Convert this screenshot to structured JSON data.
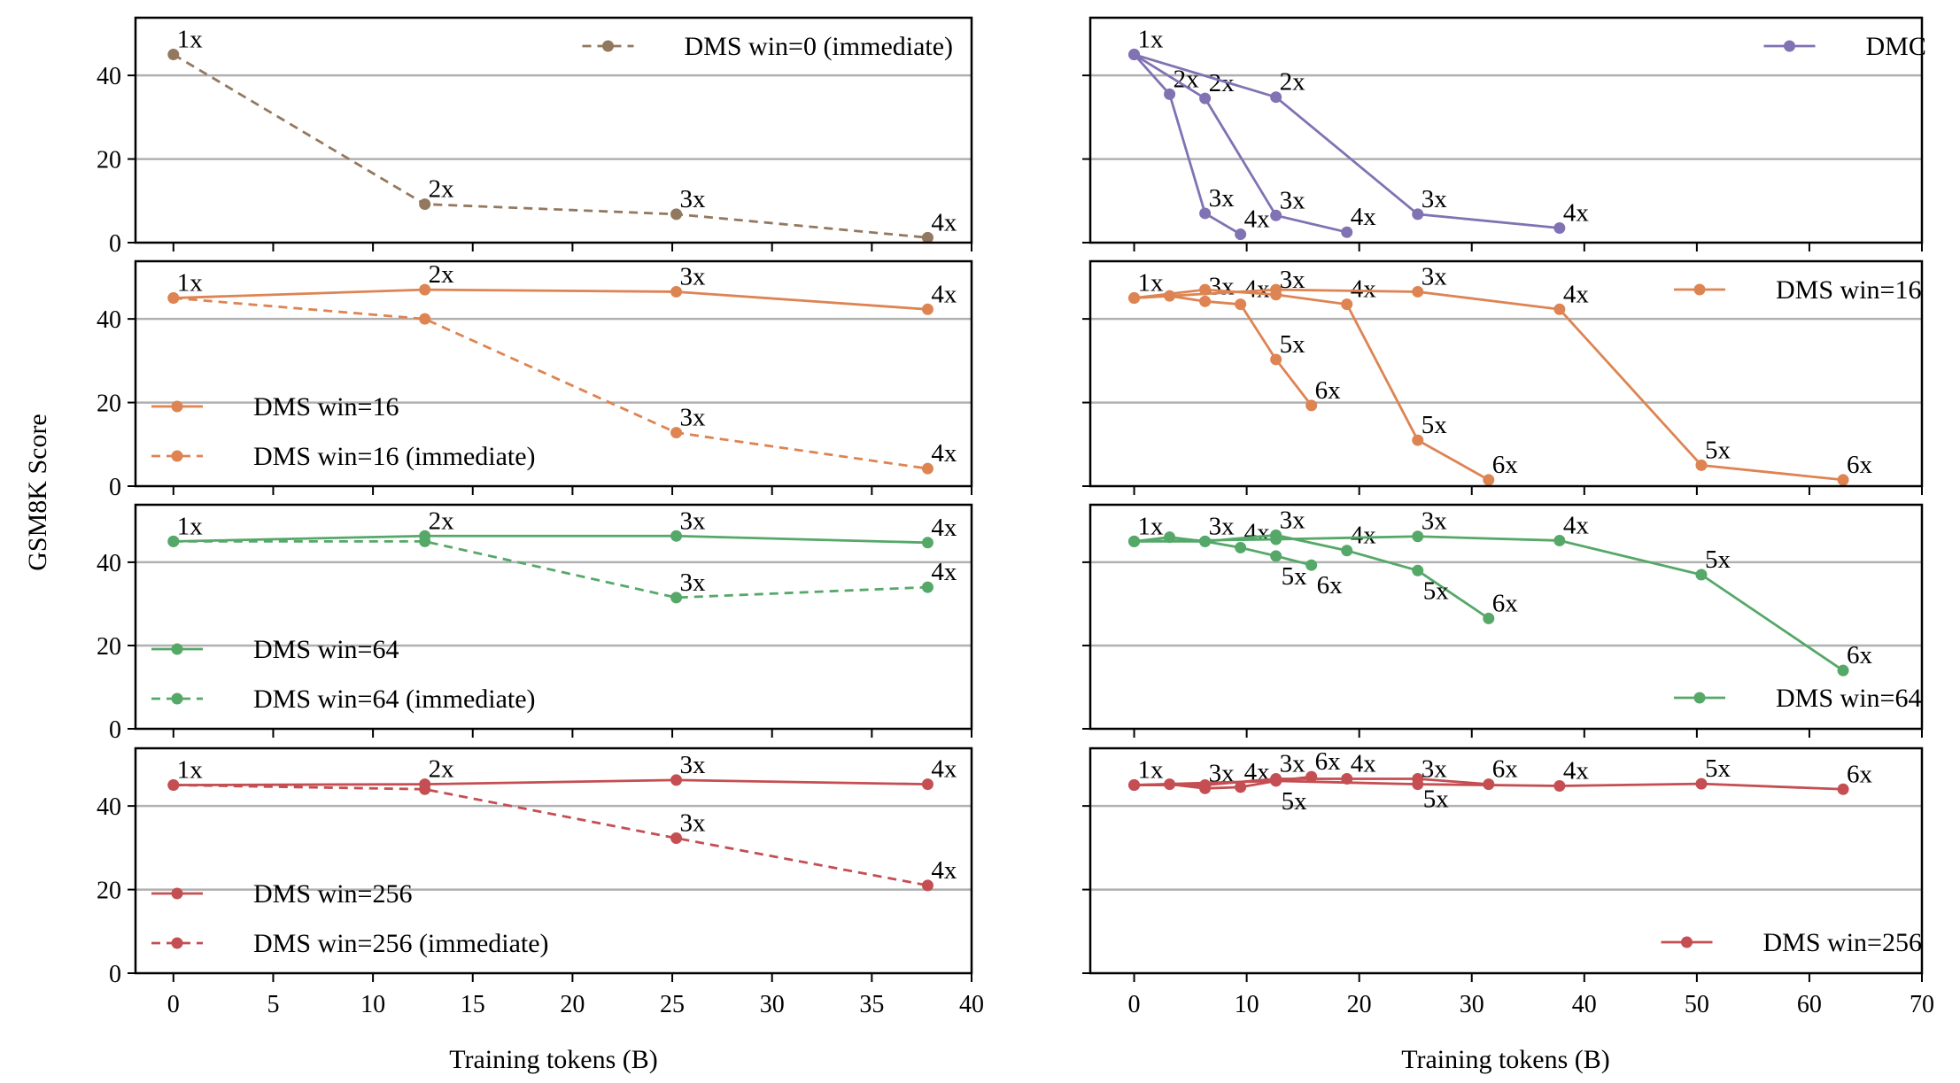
{
  "figure": {
    "ylabel": "GSM8K Score",
    "xlabel_left": "Training tokens (B)",
    "xlabel_right": "Training tokens (B)",
    "grid_color": "#b0b0b0"
  },
  "chart_data": [
    {
      "type": "line",
      "column": "left",
      "row": 0,
      "xlim": [
        -1.9,
        40
      ],
      "ylim": [
        0,
        53.8
      ],
      "xticks": [
        "0",
        "5",
        "10",
        "15",
        "20",
        "25",
        "30",
        "35",
        "40"
      ],
      "yticks": [
        "0",
        "20",
        "40"
      ],
      "grid": "horizontal",
      "legend": "top-right",
      "series": [
        {
          "name": "DMS win=0 (immediate)",
          "style": "dashed",
          "color": "#937860",
          "runs": [
            {
              "x": [
                0,
                12.6,
                25.2,
                37.8
              ],
              "y": [
                45,
                9.2,
                6.8,
                1.2
              ],
              "labels": [
                "1x",
                "2x",
                "3x",
                "4x"
              ]
            }
          ]
        }
      ]
    },
    {
      "type": "line",
      "column": "left",
      "row": 1,
      "xlim": [
        -1.9,
        40
      ],
      "ylim": [
        0,
        53.8
      ],
      "xticks": [
        "0",
        "5",
        "10",
        "15",
        "20",
        "25",
        "30",
        "35",
        "40"
      ],
      "yticks": [
        "0",
        "20",
        "40"
      ],
      "grid": "horizontal",
      "legend": "lower-left",
      "series": [
        {
          "name": "DMS win=16",
          "style": "solid",
          "color": "#dd8452",
          "runs": [
            {
              "x": [
                0,
                12.6,
                25.2,
                37.8
              ],
              "y": [
                45,
                47,
                46.5,
                42.3
              ],
              "labels": [
                "1x",
                "2x",
                "3x",
                "4x"
              ]
            }
          ]
        },
        {
          "name": "DMS win=16 (immediate)",
          "style": "dashed",
          "color": "#dd8452",
          "runs": [
            {
              "x": [
                0,
                12.6,
                25.2,
                37.8
              ],
              "y": [
                45,
                40,
                12.8,
                4.2
              ],
              "labels": [
                "",
                "",
                "3x",
                "4x"
              ]
            }
          ]
        }
      ]
    },
    {
      "type": "line",
      "column": "left",
      "row": 2,
      "xlim": [
        -1.9,
        40
      ],
      "ylim": [
        0,
        53.8
      ],
      "xticks": [
        "0",
        "5",
        "10",
        "15",
        "20",
        "25",
        "30",
        "35",
        "40"
      ],
      "yticks": [
        "0",
        "20",
        "40"
      ],
      "grid": "horizontal",
      "legend": "lower-left",
      "series": [
        {
          "name": "DMS win=64",
          "style": "solid",
          "color": "#55a868",
          "runs": [
            {
              "x": [
                0,
                12.6,
                25.2,
                37.8
              ],
              "y": [
                45,
                46.3,
                46.3,
                44.7
              ],
              "labels": [
                "1x",
                "2x",
                "3x",
                "4x"
              ]
            }
          ]
        },
        {
          "name": "DMS win=64 (immediate)",
          "style": "dashed",
          "color": "#55a868",
          "runs": [
            {
              "x": [
                0,
                12.6,
                25.2,
                37.8
              ],
              "y": [
                45,
                45,
                31.5,
                34
              ],
              "labels": [
                "",
                "",
                "3x",
                "4x"
              ]
            }
          ]
        }
      ]
    },
    {
      "type": "line",
      "column": "left",
      "row": 3,
      "xlim": [
        -1.9,
        40
      ],
      "ylim": [
        0,
        53.8
      ],
      "xticks": [
        "0",
        "5",
        "10",
        "15",
        "20",
        "25",
        "30",
        "35",
        "40"
      ],
      "yticks": [
        "0",
        "20",
        "40"
      ],
      "grid": "horizontal",
      "legend": "lower-left",
      "series": [
        {
          "name": "DMS win=256",
          "style": "solid",
          "color": "#c44e52",
          "runs": [
            {
              "x": [
                0,
                12.6,
                25.2,
                37.8
              ],
              "y": [
                45,
                45.2,
                46.2,
                45.2
              ],
              "labels": [
                "1x",
                "2x",
                "3x",
                "4x"
              ]
            }
          ]
        },
        {
          "name": "DMS win=256 (immediate)",
          "style": "dashed",
          "color": "#c44e52",
          "runs": [
            {
              "x": [
                0,
                12.6,
                25.2,
                37.8
              ],
              "y": [
                45,
                44,
                32.3,
                21
              ],
              "labels": [
                "",
                "",
                "3x",
                "4x"
              ]
            }
          ]
        }
      ]
    },
    {
      "type": "line",
      "column": "right",
      "row": 0,
      "xlim": [
        -3.9,
        70
      ],
      "ylim": [
        0,
        53.8
      ],
      "xticks": [
        "0",
        "10",
        "20",
        "30",
        "40",
        "50",
        "60",
        "70"
      ],
      "grid": "horizontal",
      "legend": "top-right",
      "series": [
        {
          "name": "DMC",
          "style": "solid",
          "color": "#8172b3",
          "runs": [
            {
              "x": [
                0,
                3.15,
                6.3,
                9.45
              ],
              "y": [
                45,
                35.5,
                7,
                2
              ],
              "labels": [
                "1x",
                "2x",
                "3x",
                "4x"
              ]
            },
            {
              "x": [
                0,
                6.3,
                12.6,
                18.9
              ],
              "y": [
                45,
                34.5,
                6.5,
                2.5
              ],
              "labels": [
                "",
                "2x",
                "3x",
                "4x"
              ]
            },
            {
              "x": [
                0,
                12.6,
                25.2,
                37.8
              ],
              "y": [
                45,
                34.8,
                6.8,
                3.5
              ],
              "labels": [
                "",
                "2x",
                "3x",
                "4x"
              ]
            }
          ]
        }
      ]
    },
    {
      "type": "line",
      "column": "right",
      "row": 1,
      "xlim": [
        -3.9,
        70
      ],
      "ylim": [
        0,
        53.8
      ],
      "xticks": [
        "0",
        "10",
        "20",
        "30",
        "40",
        "50",
        "60",
        "70"
      ],
      "grid": "horizontal",
      "legend": "top-right",
      "series": [
        {
          "name": "DMS win=16",
          "style": "solid",
          "color": "#dd8452",
          "runs": [
            {
              "x": [
                0,
                3.15,
                6.3,
                9.45,
                12.6,
                15.75
              ],
              "y": [
                45,
                45.5,
                44.2,
                43.5,
                30.3,
                19.3
              ],
              "labels": [
                "1x",
                "",
                "3x",
                "4x",
                "5x",
                "6x"
              ]
            },
            {
              "x": [
                0,
                6.3,
                12.6,
                18.9,
                25.2,
                31.5
              ],
              "y": [
                45,
                47,
                45.8,
                43.5,
                11,
                1.5
              ],
              "labels": [
                "",
                "",
                "3x",
                "4x",
                "5x",
                "6x"
              ]
            },
            {
              "x": [
                0,
                12.6,
                25.2,
                37.8,
                50.4,
                63
              ],
              "y": [
                45,
                47,
                46.5,
                42.3,
                5,
                1.5
              ],
              "labels": [
                "",
                "",
                "3x",
                "4x",
                "5x",
                "6x"
              ]
            }
          ]
        }
      ]
    },
    {
      "type": "line",
      "column": "right",
      "row": 2,
      "xlim": [
        -3.9,
        70
      ],
      "ylim": [
        0,
        53.8
      ],
      "xticks": [
        "0",
        "10",
        "20",
        "30",
        "40",
        "50",
        "60",
        "70"
      ],
      "grid": "horizontal",
      "legend": "lower-right",
      "series": [
        {
          "name": "DMS win=64",
          "style": "solid",
          "color": "#55a868",
          "runs": [
            {
              "x": [
                0,
                3.15,
                6.3,
                9.45,
                12.6,
                15.75
              ],
              "y": [
                45,
                46,
                45,
                43.5,
                41.5,
                39.3
              ],
              "labels": [
                "1x",
                "",
                "3x",
                "4x",
                "5x",
                "6x"
              ]
            },
            {
              "x": [
                0,
                6.3,
                12.6,
                18.9,
                25.2,
                31.5
              ],
              "y": [
                45,
                45,
                46.5,
                42.8,
                38,
                26.5
              ],
              "labels": [
                "",
                "",
                "3x",
                "4x",
                "5x",
                "6x"
              ]
            },
            {
              "x": [
                0,
                12.6,
                25.2,
                37.8,
                50.4,
                63
              ],
              "y": [
                45,
                45.5,
                46.2,
                45.2,
                37,
                14
              ],
              "labels": [
                "",
                "",
                "3x",
                "4x",
                "5x",
                "6x"
              ]
            }
          ]
        }
      ]
    },
    {
      "type": "line",
      "column": "right",
      "row": 3,
      "xlim": [
        -3.9,
        70
      ],
      "ylim": [
        0,
        53.8
      ],
      "xticks": [
        "0",
        "10",
        "20",
        "30",
        "40",
        "50",
        "60",
        "70"
      ],
      "grid": "horizontal",
      "legend": "lower-right",
      "series": [
        {
          "name": "DMS win=256",
          "style": "solid",
          "color": "#c44e52",
          "runs": [
            {
              "x": [
                0,
                3.15,
                6.3,
                9.45,
                12.6,
                15.75
              ],
              "y": [
                45,
                45.2,
                44.2,
                44.5,
                46,
                47
              ],
              "labels": [
                "1x",
                "",
                "3x",
                "4x",
                "5x",
                "6x"
              ]
            },
            {
              "x": [
                0,
                6.3,
                12.6,
                18.9,
                25.2,
                31.5
              ],
              "y": [
                45,
                45,
                46.5,
                46.5,
                46.5,
                45.2
              ],
              "labels": [
                "",
                "",
                "3x",
                "4x",
                "5x",
                "6x"
              ]
            },
            {
              "x": [
                0,
                12.6,
                25.2,
                37.8,
                50.4,
                63
              ],
              "y": [
                45,
                46,
                45.2,
                44.8,
                45.3,
                44
              ],
              "labels": [
                "",
                "",
                "3x",
                "4x",
                "5x",
                "6x"
              ]
            }
          ]
        }
      ]
    }
  ]
}
